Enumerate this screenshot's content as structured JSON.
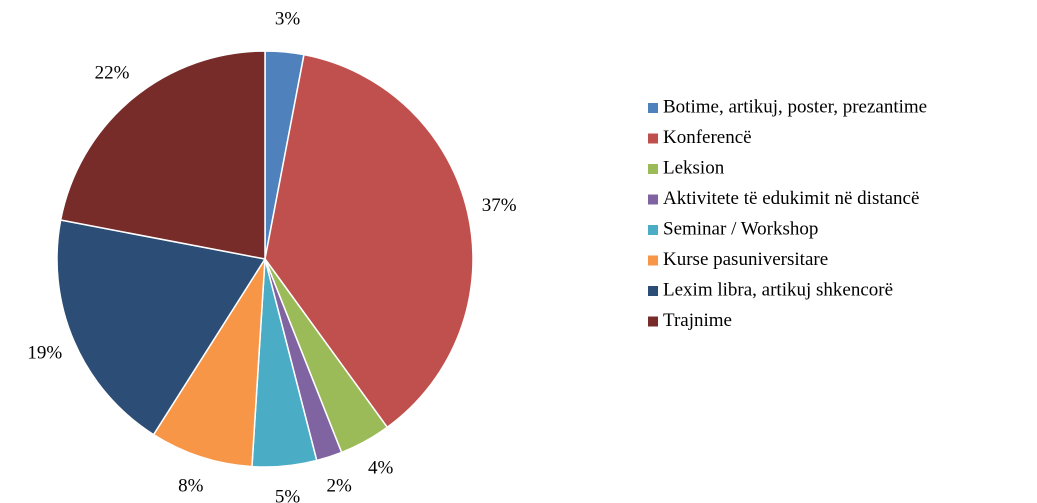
{
  "chart_data": {
    "type": "pie",
    "categories": [
      "Botime, artikuj, poster, prezantime",
      "Konferencë",
      "Leksion",
      "Aktivitete të edukimit në distancë",
      "Seminar / Workshop",
      "Kurse pasuniversitare",
      "Lexim libra, artikuj shkencorë",
      "Trajnime"
    ],
    "values": [
      3,
      37,
      4,
      2,
      5,
      8,
      19,
      22
    ],
    "value_labels": [
      "3%",
      "37%",
      "4%",
      "2%",
      "5%",
      "8%",
      "19%",
      "22%"
    ],
    "colors": [
      "#4f81bd",
      "#c0504d",
      "#9bbb59",
      "#8064a2",
      "#4bacc6",
      "#f79646",
      "#2c4d75",
      "#772c2a"
    ],
    "legend": "right"
  }
}
